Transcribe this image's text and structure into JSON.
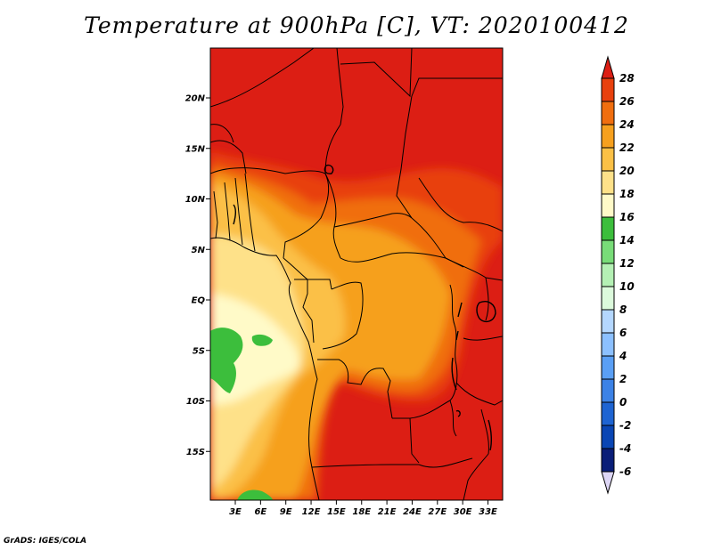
{
  "title": "Temperature at 900hPa [C], VT: 2020100412",
  "credit": "GrADS: IGES/COLA",
  "map": {
    "lat_labels": [
      "20N",
      "15N",
      "10N",
      "5N",
      "EQ",
      "5S",
      "10S",
      "15S"
    ],
    "lat_values": [
      20,
      15,
      10,
      5,
      0,
      -5,
      -10,
      -15
    ],
    "lon_labels": [
      "3E",
      "6E",
      "9E",
      "12E",
      "15E",
      "18E",
      "21E",
      "24E",
      "27E",
      "30E",
      "33E"
    ],
    "lon_values": [
      3,
      6,
      9,
      12,
      15,
      18,
      21,
      24,
      27,
      30,
      33
    ]
  },
  "colorbar": {
    "labels": [
      "28",
      "26",
      "24",
      "22",
      "20",
      "18",
      "16",
      "14",
      "12",
      "10",
      "8",
      "6",
      "4",
      "2",
      "0",
      "-2",
      "-4",
      "-6"
    ],
    "colors": [
      "#dc1e14",
      "#e8410e",
      "#f06e0f",
      "#f6a01e",
      "#fbc046",
      "#fee189",
      "#fffac8",
      "#3cbe3c",
      "#78dc78",
      "#b4f0b4",
      "#dcfadc",
      "#b4d7ff",
      "#8cc0ff",
      "#5a9ff5",
      "#3c82e6",
      "#1e64d2",
      "#0a46b4",
      "#0a1e78",
      "#ddd6f5"
    ]
  }
}
